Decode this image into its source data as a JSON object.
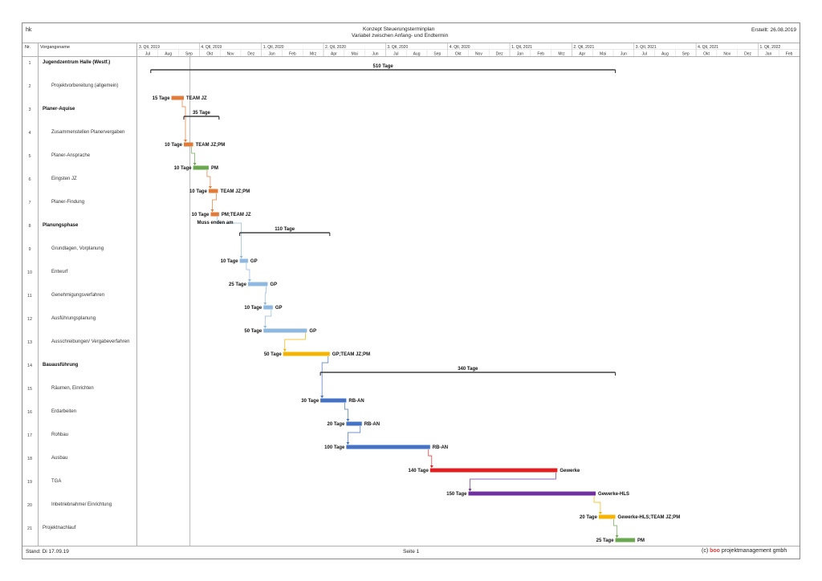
{
  "header": {
    "left": "hk",
    "title_line1": "Konzept Steuerungsterminplan",
    "title_line2": "Variabel zwischen Anfang- und Endtermin",
    "created": "Erstellt: 26.08.2019"
  },
  "table": {
    "col_nr": "Nr.",
    "col_name": "Vorgangsname"
  },
  "footer": {
    "left": "Stand: Di 17.09.19",
    "center": "Seite 1",
    "right_prefix": "(c) ",
    "right_brand": "boo",
    "right_suffix": " projektmanagement gmbh"
  },
  "colors": {
    "orange": "#e07b39",
    "green": "#6aa84f",
    "lightblue": "#8fb8e0",
    "yellow": "#f4b400",
    "darkblue": "#4472c4",
    "red": "#e02020",
    "purple": "#7030a0",
    "summary": "#404040"
  },
  "chart_data": {
    "type": "gantt",
    "timescale": {
      "quarters": [
        "3. Qtl, 2019",
        "4. Qtl, 2019",
        "1. Qtl, 2020",
        "2. Qtl, 2020",
        "3. Qtl, 2020",
        "4. Qtl, 2020",
        "1. Qtl, 2021",
        "2. Qtl, 2021",
        "3. Qtl, 2021",
        "4. Qtl, 2021",
        "1. Qtl, 2022"
      ],
      "months": [
        "Jul",
        "Aug",
        "Sep",
        "Okt",
        "Nov",
        "Dez",
        "Jan",
        "Feb",
        "Mrz",
        "Apr",
        "Mai",
        "Jun",
        "Jul",
        "Aug",
        "Sep",
        "Okt",
        "Nov",
        "Dez",
        "Jan",
        "Feb",
        "Mrz",
        "Apr",
        "Mai",
        "Jun",
        "Jul",
        "Aug",
        "Sep",
        "Okt",
        "Nov",
        "Dez",
        "Jan",
        "Feb"
      ],
      "start": "2019-07",
      "end": "2022-02"
    },
    "tasks": [
      {
        "nr": "1",
        "name": "Jugendzentrum Halle (Westf.)",
        "summary": true,
        "start": 0.65,
        "end": 23.1,
        "duration": "510 Tage",
        "resource": "",
        "color": "summary"
      },
      {
        "nr": "2",
        "name": "Projektvorbereitung (allgemein)",
        "summary": false,
        "start": 1.65,
        "end": 2.25,
        "duration": "15 Tage",
        "resource": "TEAM JZ",
        "color": "orange"
      },
      {
        "nr": "3",
        "name": "Planer-Aquise",
        "summary": true,
        "start": 2.25,
        "end": 3.95,
        "duration": "35 Tage",
        "resource": "",
        "color": "summary"
      },
      {
        "nr": "4",
        "name": "Zusammenstellen Planervergaben",
        "summary": false,
        "start": 2.25,
        "end": 2.7,
        "duration": "10 Tage",
        "resource": "TEAM JZ;PM",
        "color": "orange"
      },
      {
        "nr": "5",
        "name": "Planer-Ansprache",
        "summary": false,
        "start": 2.7,
        "end": 3.45,
        "duration": "10 Tage",
        "resource": "PM",
        "color": "green"
      },
      {
        "nr": "6",
        "name": "Eingsten JZ",
        "summary": false,
        "start": 3.45,
        "end": 3.9,
        "duration": "10 Tage",
        "resource": "TEAM JZ;PM",
        "color": "orange"
      },
      {
        "nr": "7",
        "name": "Planer-Findung",
        "summary": false,
        "start": 3.55,
        "end": 3.95,
        "duration": "10 Tage",
        "resource": "PM;TEAM JZ",
        "note": "Muss enden am",
        "color": "orange"
      },
      {
        "nr": "8",
        "name": "Planungsphase",
        "summary": true,
        "start": 4.95,
        "end": 9.3,
        "duration": "110 Tage",
        "resource": "",
        "color": "summary"
      },
      {
        "nr": "9",
        "name": "Grundlagen, Vorplanung",
        "summary": false,
        "start": 4.95,
        "end": 5.35,
        "duration": "10 Tage",
        "resource": "GP",
        "color": "lightblue"
      },
      {
        "nr": "10",
        "name": "Entwurf",
        "summary": false,
        "start": 5.35,
        "end": 6.3,
        "duration": "25 Tage",
        "resource": "GP",
        "color": "lightblue"
      },
      {
        "nr": "11",
        "name": "Genehmigungsverfahren",
        "summary": false,
        "start": 6.1,
        "end": 6.55,
        "duration": "10 Tage",
        "resource": "GP",
        "color": "lightblue"
      },
      {
        "nr": "12",
        "name": "Ausführungsplanung",
        "summary": false,
        "start": 6.1,
        "end": 8.2,
        "duration": "50 Tage",
        "resource": "GP",
        "color": "lightblue"
      },
      {
        "nr": "13",
        "name": "Ausschreibungen/ Vergabeverfahren",
        "summary": false,
        "start": 7.05,
        "end": 9.3,
        "duration": "50 Tage",
        "resource": "GP;TEAM JZ;PM",
        "color": "yellow"
      },
      {
        "nr": "14",
        "name": "Bauausführung",
        "summary": true,
        "start": 8.85,
        "end": 23.1,
        "duration": "340 Tage",
        "resource": "",
        "color": "summary"
      },
      {
        "nr": "15",
        "name": "Räumen, Einrichten",
        "summary": false,
        "start": 8.85,
        "end": 10.1,
        "duration": "30 Tage",
        "resource": "RB-AN",
        "color": "darkblue"
      },
      {
        "nr": "16",
        "name": "Erdarbeiten",
        "summary": false,
        "start": 10.1,
        "end": 10.85,
        "duration": "20 Tage",
        "resource": "RB-AN",
        "color": "darkblue"
      },
      {
        "nr": "17",
        "name": "Rohbau",
        "summary": false,
        "start": 10.1,
        "end": 14.15,
        "duration": "100 Tage",
        "resource": "RB-AN",
        "color": "darkblue"
      },
      {
        "nr": "18",
        "name": "Ausbau",
        "summary": false,
        "start": 14.15,
        "end": 20.3,
        "duration": "140 Tage",
        "resource": "Gewerke",
        "color": "red"
      },
      {
        "nr": "19",
        "name": "TGA",
        "summary": false,
        "start": 16.0,
        "end": 22.15,
        "duration": "150 Tage",
        "resource": "Gewerke-HLS",
        "color": "purple"
      },
      {
        "nr": "20",
        "name": "Inbetriebnahme/ Einrichtung",
        "summary": false,
        "start": 22.3,
        "end": 23.1,
        "duration": "20 Tage",
        "resource": "Gewerke-HLS;TEAM JZ;PM",
        "color": "yellow"
      },
      {
        "nr": "21",
        "name": "Projektnachlauf",
        "summary": false,
        "start": 23.1,
        "end": 24.05,
        "duration": "25 Tage",
        "resource": "PM",
        "color": "green"
      }
    ]
  }
}
